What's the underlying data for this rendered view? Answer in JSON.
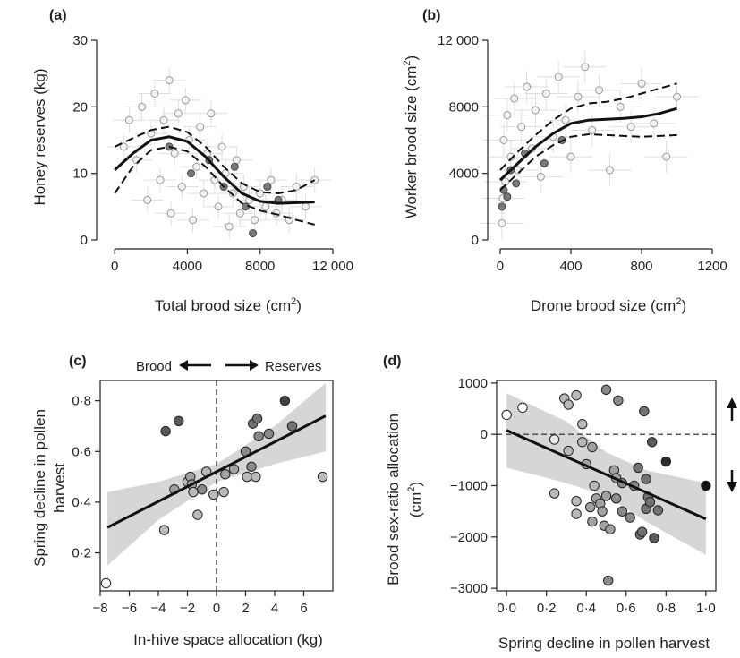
{
  "chart_data": [
    {
      "panel": "(a)",
      "type": "scatter",
      "xlabel": "Total brood size (cm",
      "xlabel_sup": "2",
      "xlabel_end": ")",
      "ylabel": "Honey reserves (kg)",
      "xlim": [
        -500,
        12000
      ],
      "ylim": [
        0,
        30
      ],
      "xticks": [
        0,
        4000,
        8000,
        12000
      ],
      "xtick_labels": [
        "0",
        "4000",
        "8000",
        "12 000"
      ],
      "yticks": [
        0,
        10,
        20,
        30
      ],
      "ytick_labels": [
        "0",
        "10",
        "20",
        "30"
      ],
      "point_style": "open light-grey circles with light-grey error bars; some darker filled points",
      "fit": {
        "x": [
          0,
          1000,
          2000,
          3000,
          4000,
          5000,
          6000,
          7000,
          8000,
          9000,
          10000,
          11000
        ],
        "y": [
          10.5,
          13,
          15,
          15.5,
          14.8,
          12.5,
          9.5,
          7,
          5.8,
          5.5,
          5.6,
          5.7
        ]
      },
      "ci_upper": {
        "x": [
          0,
          1000,
          2000,
          3000,
          4000,
          5000,
          6000,
          7000,
          8000,
          9000,
          10000,
          11000
        ],
        "y": [
          14,
          15.3,
          16.5,
          17,
          16.2,
          14,
          11,
          8.5,
          7.2,
          7,
          7.5,
          9
        ]
      },
      "ci_lower": {
        "x": [
          0,
          1000,
          2000,
          3000,
          4000,
          5000,
          6000,
          7000,
          8000,
          9000,
          10000,
          11000
        ],
        "y": [
          7,
          11,
          13.5,
          14,
          13.3,
          11,
          8,
          5.5,
          4.4,
          3.8,
          3,
          2.3
        ]
      },
      "points": [
        {
          "x": 500,
          "y": 14
        },
        {
          "x": 800,
          "y": 18
        },
        {
          "x": 1200,
          "y": 12
        },
        {
          "x": 1500,
          "y": 20
        },
        {
          "x": 1800,
          "y": 6
        },
        {
          "x": 2000,
          "y": 16
        },
        {
          "x": 2200,
          "y": 22
        },
        {
          "x": 2500,
          "y": 9
        },
        {
          "x": 2700,
          "y": 18
        },
        {
          "x": 3000,
          "y": 24
        },
        {
          "x": 3100,
          "y": 4
        },
        {
          "x": 3300,
          "y": 13
        },
        {
          "x": 3500,
          "y": 19
        },
        {
          "x": 3700,
          "y": 8
        },
        {
          "x": 3900,
          "y": 21
        },
        {
          "x": 4100,
          "y": 15
        },
        {
          "x": 4300,
          "y": 3
        },
        {
          "x": 4500,
          "y": 11
        },
        {
          "x": 4700,
          "y": 17
        },
        {
          "x": 4900,
          "y": 7
        },
        {
          "x": 5100,
          "y": 13
        },
        {
          "x": 5300,
          "y": 19
        },
        {
          "x": 5500,
          "y": 9
        },
        {
          "x": 5700,
          "y": 5
        },
        {
          "x": 5900,
          "y": 14
        },
        {
          "x": 6100,
          "y": 10
        },
        {
          "x": 6300,
          "y": 2
        },
        {
          "x": 6500,
          "y": 7
        },
        {
          "x": 6700,
          "y": 12
        },
        {
          "x": 6900,
          "y": 4
        },
        {
          "x": 7100,
          "y": 8
        },
        {
          "x": 7400,
          "y": 6
        },
        {
          "x": 7700,
          "y": 3
        },
        {
          "x": 8000,
          "y": 7
        },
        {
          "x": 8300,
          "y": 5
        },
        {
          "x": 8600,
          "y": 9
        },
        {
          "x": 8900,
          "y": 4
        },
        {
          "x": 9200,
          "y": 6
        },
        {
          "x": 9600,
          "y": 3
        },
        {
          "x": 10000,
          "y": 8
        },
        {
          "x": 10500,
          "y": 5
        },
        {
          "x": 11000,
          "y": 9
        }
      ],
      "dark_points": [
        {
          "x": 3000,
          "y": 14
        },
        {
          "x": 4200,
          "y": 10
        },
        {
          "x": 5200,
          "y": 12
        },
        {
          "x": 6000,
          "y": 8
        },
        {
          "x": 6600,
          "y": 11
        },
        {
          "x": 7200,
          "y": 5
        },
        {
          "x": 7600,
          "y": 1
        },
        {
          "x": 8400,
          "y": 8
        },
        {
          "x": 9000,
          "y": 6
        }
      ]
    },
    {
      "panel": "(b)",
      "type": "scatter",
      "xlabel": "Drone brood size (cm",
      "xlabel_sup": "2",
      "xlabel_end": ")",
      "ylabel": "Worker brood size (cm",
      "ylabel_sup": "2",
      "ylabel_end": ")",
      "xlim": [
        -20,
        1220
      ],
      "ylim": [
        0,
        12000
      ],
      "xticks": [
        0,
        400,
        800,
        1200
      ],
      "xtick_labels": [
        "0",
        "400",
        "800",
        "1200"
      ],
      "yticks": [
        0,
        4000,
        8000,
        12000
      ],
      "ytick_labels": [
        "0",
        "4000",
        "8000",
        "12 000"
      ],
      "fit": {
        "x": [
          0,
          100,
          200,
          300,
          400,
          500,
          600,
          700,
          800,
          900,
          1000
        ],
        "y": [
          3600,
          4600,
          5600,
          6400,
          7000,
          7200,
          7250,
          7300,
          7400,
          7600,
          7900
        ]
      },
      "ci_upper": {
        "x": [
          0,
          100,
          200,
          300,
          400,
          500,
          600,
          700,
          800,
          900,
          1000
        ],
        "y": [
          4200,
          5300,
          6300,
          7200,
          7900,
          8200,
          8300,
          8500,
          8800,
          9100,
          9400
        ]
      },
      "ci_lower": {
        "x": [
          0,
          100,
          200,
          300,
          400,
          500,
          600,
          700,
          800,
          900,
          1000
        ],
        "y": [
          3000,
          4000,
          5000,
          5700,
          6200,
          6350,
          6300,
          6250,
          6200,
          6250,
          6300
        ]
      },
      "points": [
        {
          "x": 10,
          "y": 1000
        },
        {
          "x": 15,
          "y": 2500
        },
        {
          "x": 20,
          "y": 6000
        },
        {
          "x": 30,
          "y": 3500
        },
        {
          "x": 40,
          "y": 7500
        },
        {
          "x": 60,
          "y": 5000
        },
        {
          "x": 80,
          "y": 8500
        },
        {
          "x": 100,
          "y": 4200
        },
        {
          "x": 120,
          "y": 6800
        },
        {
          "x": 150,
          "y": 9200
        },
        {
          "x": 180,
          "y": 5500
        },
        {
          "x": 200,
          "y": 7800
        },
        {
          "x": 230,
          "y": 3800
        },
        {
          "x": 260,
          "y": 8800
        },
        {
          "x": 300,
          "y": 6200
        },
        {
          "x": 330,
          "y": 9800
        },
        {
          "x": 370,
          "y": 7200
        },
        {
          "x": 400,
          "y": 5000
        },
        {
          "x": 440,
          "y": 8600
        },
        {
          "x": 480,
          "y": 10400
        },
        {
          "x": 520,
          "y": 6600
        },
        {
          "x": 560,
          "y": 9000
        },
        {
          "x": 620,
          "y": 4200
        },
        {
          "x": 680,
          "y": 8000
        },
        {
          "x": 740,
          "y": 6800
        },
        {
          "x": 800,
          "y": 9400
        },
        {
          "x": 870,
          "y": 7000
        },
        {
          "x": 940,
          "y": 5000
        },
        {
          "x": 1000,
          "y": 8600
        }
      ],
      "dark_points": [
        {
          "x": 10,
          "y": 2000
        },
        {
          "x": 20,
          "y": 3000
        },
        {
          "x": 40,
          "y": 2600
        },
        {
          "x": 60,
          "y": 4200
        },
        {
          "x": 90,
          "y": 3400
        },
        {
          "x": 140,
          "y": 5200
        },
        {
          "x": 250,
          "y": 4600
        },
        {
          "x": 350,
          "y": 6000
        }
      ]
    },
    {
      "panel": "(c)",
      "type": "scatter",
      "xlabel": "In-hive space allocation (kg)",
      "ylabel_line1": "Spring decline in pollen",
      "ylabel_line2": "harvest",
      "arrow_left_label": "Brood",
      "arrow_right_label": "Reserves",
      "xlim": [
        -8,
        8
      ],
      "ylim": [
        0.05,
        0.88
      ],
      "xticks": [
        -8,
        -6,
        -4,
        -2,
        0,
        2,
        4,
        6
      ],
      "xtick_labels": [
        "−8",
        "−6",
        "−4",
        "−2",
        "0",
        "2",
        "4",
        "6"
      ],
      "yticks": [
        0.2,
        0.4,
        0.6,
        0.8
      ],
      "ytick_labels": [
        "0·2",
        "0·4",
        "0·6",
        "0·8"
      ],
      "fit": {
        "x": [
          -7.5,
          7.5
        ],
        "y": [
          0.3,
          0.74
        ]
      },
      "ci_upper": {
        "x": [
          -7.5,
          -4,
          0,
          4,
          7.5
        ],
        "y": [
          0.44,
          0.48,
          0.55,
          0.7,
          0.87
        ]
      },
      "ci_lower": {
        "x": [
          -7.5,
          -4,
          0,
          4,
          7.5
        ],
        "y": [
          0.15,
          0.33,
          0.48,
          0.55,
          0.6
        ]
      },
      "points": [
        {
          "x": -7.6,
          "y": 0.08,
          "shade": 0.0
        },
        {
          "x": -3.6,
          "y": 0.29,
          "shade": 0.3
        },
        {
          "x": -3.5,
          "y": 0.68,
          "shade": 0.7
        },
        {
          "x": -2.9,
          "y": 0.45,
          "shade": 0.4
        },
        {
          "x": -2.6,
          "y": 0.72,
          "shade": 0.7
        },
        {
          "x": -2.0,
          "y": 0.48,
          "shade": 0.3
        },
        {
          "x": -1.8,
          "y": 0.5,
          "shade": 0.4
        },
        {
          "x": -1.7,
          "y": 0.47,
          "shade": 0.4
        },
        {
          "x": -1.6,
          "y": 0.44,
          "shade": 0.3
        },
        {
          "x": -1.3,
          "y": 0.35,
          "shade": 0.3
        },
        {
          "x": -1.0,
          "y": 0.45,
          "shade": 0.5
        },
        {
          "x": -0.7,
          "y": 0.52,
          "shade": 0.3
        },
        {
          "x": -0.2,
          "y": 0.43,
          "shade": 0.3
        },
        {
          "x": 0.5,
          "y": 0.44,
          "shade": 0.3
        },
        {
          "x": 0.6,
          "y": 0.51,
          "shade": 0.4
        },
        {
          "x": 1.2,
          "y": 0.53,
          "shade": 0.4
        },
        {
          "x": 2.0,
          "y": 0.6,
          "shade": 0.5
        },
        {
          "x": 2.1,
          "y": 0.5,
          "shade": 0.3
        },
        {
          "x": 2.4,
          "y": 0.54,
          "shade": 0.5
        },
        {
          "x": 2.5,
          "y": 0.71,
          "shade": 0.6
        },
        {
          "x": 2.7,
          "y": 0.5,
          "shade": 0.3
        },
        {
          "x": 2.8,
          "y": 0.73,
          "shade": 0.6
        },
        {
          "x": 2.9,
          "y": 0.66,
          "shade": 0.5
        },
        {
          "x": 3.6,
          "y": 0.67,
          "shade": 0.5
        },
        {
          "x": 4.7,
          "y": 0.8,
          "shade": 0.8
        },
        {
          "x": 5.2,
          "y": 0.7,
          "shade": 0.6
        },
        {
          "x": 7.3,
          "y": 0.5,
          "shade": 0.3
        }
      ]
    },
    {
      "panel": "(d)",
      "type": "scatter",
      "xlabel": "Spring decline in pollen harvest",
      "ylabel_line1": "Brood sex-ratio allocation",
      "ylabel_line2": "(cm",
      "ylabel_line2_sup": "2",
      "ylabel_line2_end": ")",
      "xlim": [
        -0.05,
        1.05
      ],
      "ylim": [
        -3050,
        1050
      ],
      "xticks": [
        0,
        0.2,
        0.4,
        0.6,
        0.8,
        1.0
      ],
      "xtick_labels": [
        "0·0",
        "0·2",
        "0·4",
        "0·6",
        "0·8",
        "1·0"
      ],
      "yticks": [
        -3000,
        -2000,
        -1000,
        0,
        1000
      ],
      "ytick_labels": [
        "−3000",
        "−2000",
        "−1000",
        "0",
        "1000"
      ],
      "fit": {
        "x": [
          0.0,
          1.0
        ],
        "y": [
          80,
          -1650
        ]
      },
      "ci_upper": {
        "x": [
          0.0,
          0.3,
          0.5,
          0.7,
          1.0
        ],
        "y": [
          800,
          250,
          -350,
          -700,
          -950
        ]
      },
      "ci_lower": {
        "x": [
          0.0,
          0.3,
          0.5,
          0.7,
          1.0
        ],
        "y": [
          -650,
          -950,
          -1200,
          -1700,
          -2350
        ]
      },
      "points": [
        {
          "x": 0.0,
          "y": 380,
          "shade": 0.0
        },
        {
          "x": 0.08,
          "y": 520,
          "shade": 0.0
        },
        {
          "x": 0.24,
          "y": -100,
          "shade": 0.1
        },
        {
          "x": 0.24,
          "y": -1150,
          "shade": 0.3
        },
        {
          "x": 0.29,
          "y": 700,
          "shade": 0.3
        },
        {
          "x": 0.31,
          "y": 580,
          "shade": 0.3
        },
        {
          "x": 0.31,
          "y": -320,
          "shade": 0.3
        },
        {
          "x": 0.35,
          "y": 760,
          "shade": 0.3
        },
        {
          "x": 0.35,
          "y": -1300,
          "shade": 0.3
        },
        {
          "x": 0.35,
          "y": -1550,
          "shade": 0.3
        },
        {
          "x": 0.38,
          "y": 200,
          "shade": 0.3
        },
        {
          "x": 0.38,
          "y": -150,
          "shade": 0.3
        },
        {
          "x": 0.4,
          "y": -580,
          "shade": 0.4
        },
        {
          "x": 0.42,
          "y": -1420,
          "shade": 0.4
        },
        {
          "x": 0.43,
          "y": -250,
          "shade": 0.4
        },
        {
          "x": 0.43,
          "y": -1700,
          "shade": 0.4
        },
        {
          "x": 0.44,
          "y": -1000,
          "shade": 0.3
        },
        {
          "x": 0.45,
          "y": -1250,
          "shade": 0.4
        },
        {
          "x": 0.47,
          "y": -1350,
          "shade": 0.4
        },
        {
          "x": 0.48,
          "y": -1500,
          "shade": 0.4
        },
        {
          "x": 0.49,
          "y": -1780,
          "shade": 0.4
        },
        {
          "x": 0.5,
          "y": 870,
          "shade": 0.5
        },
        {
          "x": 0.5,
          "y": -1200,
          "shade": 0.4
        },
        {
          "x": 0.51,
          "y": -2850,
          "shade": 0.5
        },
        {
          "x": 0.52,
          "y": -1850,
          "shade": 0.4
        },
        {
          "x": 0.54,
          "y": -700,
          "shade": 0.4
        },
        {
          "x": 0.55,
          "y": -850,
          "shade": 0.4
        },
        {
          "x": 0.55,
          "y": -1250,
          "shade": 0.5
        },
        {
          "x": 0.56,
          "y": 660,
          "shade": 0.5
        },
        {
          "x": 0.58,
          "y": -950,
          "shade": 0.5
        },
        {
          "x": 0.58,
          "y": -1500,
          "shade": 0.5
        },
        {
          "x": 0.62,
          "y": -1620,
          "shade": 0.5
        },
        {
          "x": 0.64,
          "y": -1000,
          "shade": 0.5
        },
        {
          "x": 0.66,
          "y": -650,
          "shade": 0.6
        },
        {
          "x": 0.67,
          "y": -1950,
          "shade": 0.6
        },
        {
          "x": 0.68,
          "y": -1900,
          "shade": 0.6
        },
        {
          "x": 0.69,
          "y": 450,
          "shade": 0.6
        },
        {
          "x": 0.7,
          "y": -870,
          "shade": 0.6
        },
        {
          "x": 0.7,
          "y": -1450,
          "shade": 0.6
        },
        {
          "x": 0.71,
          "y": -1220,
          "shade": 0.6
        },
        {
          "x": 0.72,
          "y": -1320,
          "shade": 0.6
        },
        {
          "x": 0.73,
          "y": -150,
          "shade": 0.7
        },
        {
          "x": 0.74,
          "y": -2020,
          "shade": 0.7
        },
        {
          "x": 0.76,
          "y": -1480,
          "shade": 0.6
        },
        {
          "x": 0.8,
          "y": -530,
          "shade": 0.9
        },
        {
          "x": 1.0,
          "y": -1000,
          "shade": 1.0
        }
      ]
    }
  ]
}
